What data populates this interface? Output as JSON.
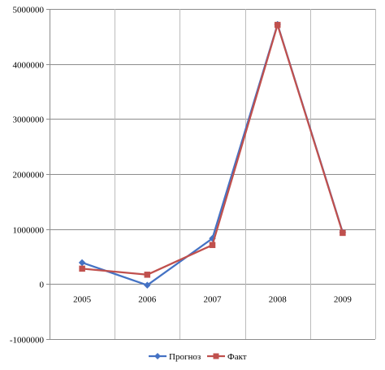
{
  "chart_data": {
    "type": "line",
    "title": "",
    "xlabel": "",
    "ylabel": "",
    "categories": [
      "2005",
      "2006",
      "2007",
      "2008",
      "2009"
    ],
    "ylim": [
      -1000000,
      5000000
    ],
    "yticks": [
      5000000,
      4000000,
      3000000,
      2000000,
      1000000,
      0,
      -1000000
    ],
    "ytick_labels": [
      "5000000",
      "4000000",
      "3000000",
      "2000000",
      "1000000",
      "0",
      "-1000000"
    ],
    "x_tick_labels_position": "at zero line",
    "grid": {
      "horizontal": true,
      "vertical": true
    },
    "legend_position": "bottom-center",
    "series": [
      {
        "name": "Прогноз",
        "values": [
          390000,
          -20000,
          830000,
          4720000,
          940000
        ],
        "color": "#4472C4",
        "marker": "diamond"
      },
      {
        "name": "Факт",
        "values": [
          280000,
          170000,
          710000,
          4710000,
          930000
        ],
        "color": "#C0504D",
        "marker": "square"
      }
    ]
  }
}
